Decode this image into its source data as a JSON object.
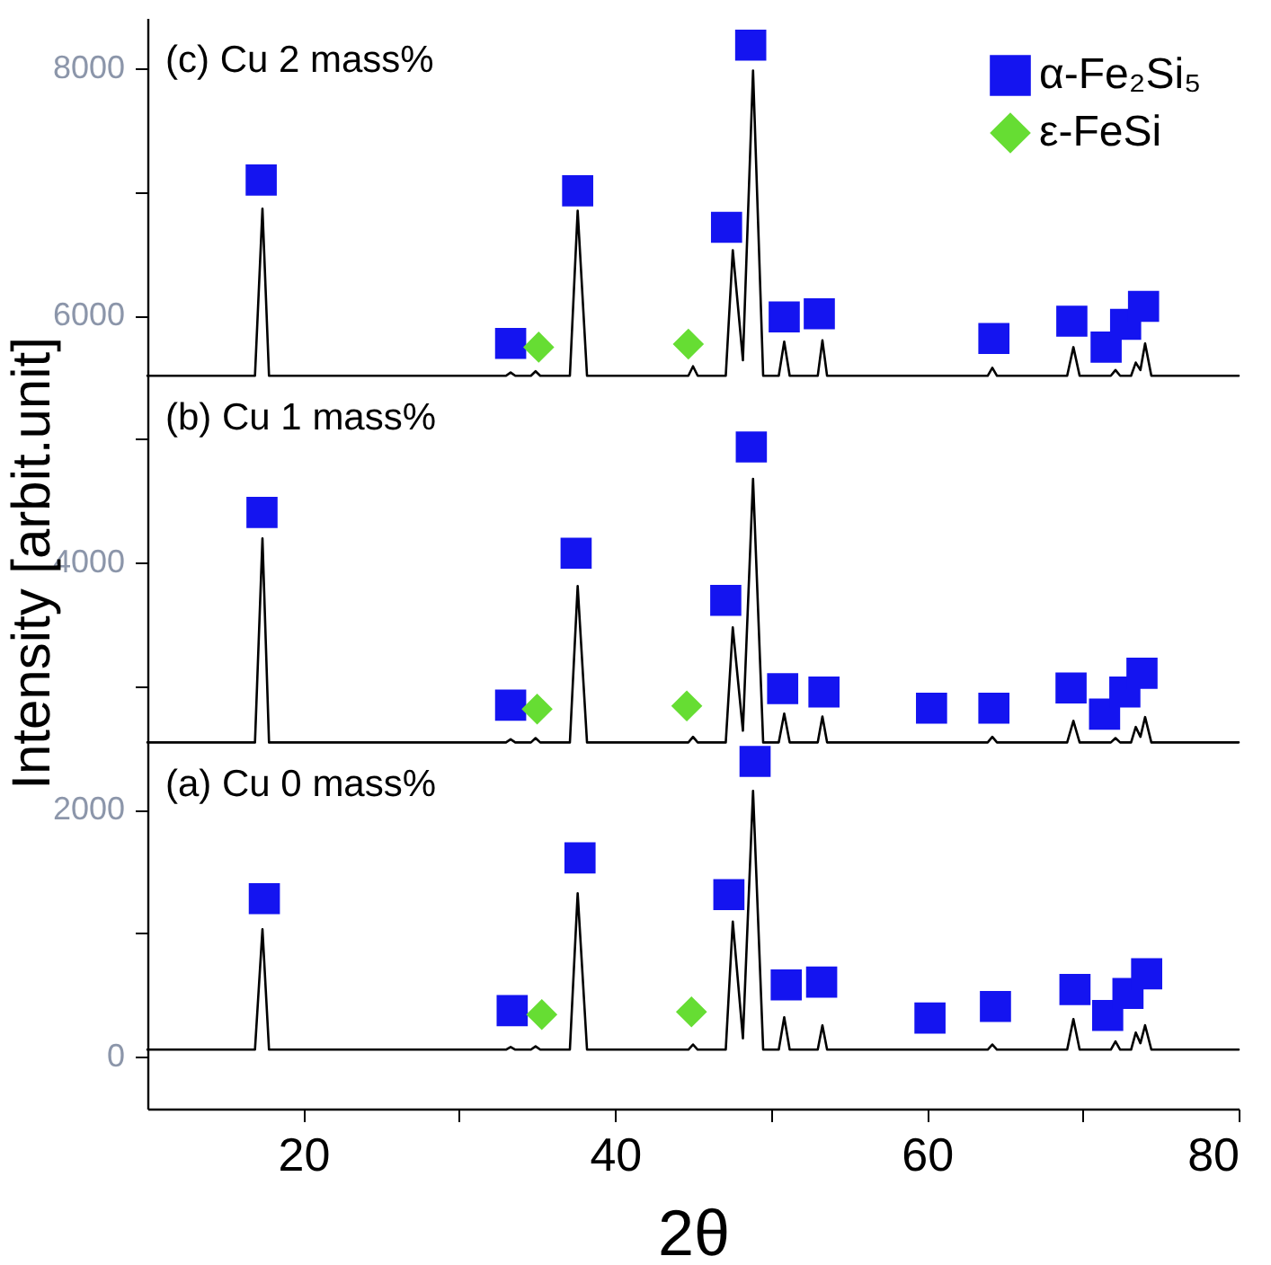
{
  "chart_data": {
    "type": "line",
    "xlabel": "2θ",
    "ylabel": "Intensity [arbit.unit]",
    "xlim": [
      10,
      80
    ],
    "xticks": [
      20,
      {
        "value": 30,
        "label": null
      },
      40,
      {
        "value": 50,
        "label": null
      },
      60,
      {
        "value": 70,
        "label": null
      },
      80
    ],
    "ylim": [
      -420,
      8410
    ],
    "yticks": [
      0,
      {
        "value": 1000,
        "label": null
      },
      2000,
      {
        "value": 3000,
        "label": null
      },
      4000,
      {
        "value": 5000,
        "label": null
      },
      6000,
      {
        "value": 7000,
        "label": null
      },
      8000
    ],
    "grid": false,
    "legend": "top right",
    "annotations": [
      "(c) Cu 2 mass%",
      "(b) Cu 1 mass%",
      "(a) Cu 0 mass%"
    ],
    "series": [
      {
        "type": "line",
        "color": "#000000",
        "x": [
          10,
          16.9,
          17.38,
          17.8,
          33.0,
          33.3,
          33.6,
          34.6,
          34.9,
          35.2,
          37.1,
          37.6,
          38.2,
          44.7,
          45.0,
          45.3,
          47.1,
          47.55,
          48.2,
          48.85,
          49.5,
          50.5,
          50.85,
          51.2,
          53.0,
          53.3,
          53.6,
          63.9,
          64.2,
          64.5,
          69.0,
          69.4,
          69.8,
          71.8,
          72.1,
          72.4,
          73.1,
          73.4,
          73.7,
          74.0,
          74.4,
          80
        ],
        "values": [
          5513,
          5513,
          6865,
          5513,
          5513,
          5540,
          5513,
          5513,
          5550,
          5513,
          5513,
          6850,
          5513,
          5513,
          5590,
          5513,
          5513,
          6530,
          5640,
          7985,
          5513,
          5513,
          5790,
          5513,
          5513,
          5800,
          5513,
          5513,
          5578,
          5513,
          5513,
          5745,
          5513,
          5513,
          5560,
          5513,
          5513,
          5620,
          5560,
          5775,
          5513,
          5513
        ]
      },
      {
        "type": "line",
        "color": "#000000",
        "x": [
          10,
          16.9,
          17.38,
          17.8,
          33.0,
          33.3,
          33.6,
          34.6,
          34.9,
          35.2,
          37.1,
          37.6,
          38.2,
          44.7,
          45.0,
          45.3,
          47.1,
          47.55,
          48.2,
          48.85,
          49.5,
          50.5,
          50.85,
          51.2,
          53.0,
          53.3,
          53.6,
          63.9,
          64.2,
          64.5,
          69.0,
          69.4,
          69.8,
          71.8,
          72.1,
          72.4,
          73.1,
          73.4,
          73.7,
          74.0,
          74.4,
          80
        ],
        "values": [
          2545,
          2545,
          4196,
          2545,
          2545,
          2570,
          2545,
          2545,
          2580,
          2545,
          2545,
          3811,
          2545,
          2545,
          2590,
          2545,
          2545,
          3476,
          2640,
          4678,
          2545,
          2545,
          2778,
          2545,
          2545,
          2755,
          2545,
          2545,
          2590,
          2545,
          2545,
          2720,
          2545,
          2545,
          2580,
          2545,
          2545,
          2670,
          2590,
          2750,
          2545,
          2545
        ]
      },
      {
        "type": "line",
        "color": "#000000",
        "x": [
          10,
          16.9,
          17.38,
          17.8,
          33.0,
          33.3,
          33.6,
          34.6,
          34.9,
          35.2,
          37.1,
          37.6,
          38.2,
          44.7,
          45.0,
          45.3,
          47.1,
          47.55,
          48.2,
          48.85,
          49.5,
          50.5,
          50.85,
          51.2,
          53.0,
          53.3,
          53.6,
          63.9,
          64.2,
          64.5,
          69.0,
          69.4,
          69.8,
          71.8,
          72.1,
          72.4,
          73.1,
          73.4,
          73.7,
          74.0,
          74.4,
          80
        ],
        "values": [
          58,
          58,
          1033,
          58,
          58,
          80,
          58,
          58,
          85,
          58,
          58,
          1324,
          58,
          58,
          100,
          58,
          58,
          1095,
          150,
          2153,
          58,
          58,
          320,
          58,
          58,
          255,
          58,
          58,
          100,
          58,
          58,
          305,
          58,
          58,
          124,
          58,
          58,
          196,
          110,
          255,
          58,
          58
        ]
      },
      {
        "type": "scatter",
        "name": "α-Fe₂Si₅",
        "color": "#1414f0",
        "marker": "square",
        "x": [
          17.3,
          33.3,
          37.6,
          47.15,
          48.7,
          50.85,
          53.1,
          64.3,
          69.3,
          71.5,
          72.75,
          73.9,
          17.35,
          33.3,
          37.5,
          47.1,
          48.74,
          50.75,
          53.4,
          60.3,
          64.3,
          69.25,
          71.4,
          72.7,
          73.8,
          17.5,
          33.4,
          37.75,
          47.3,
          48.98,
          50.98,
          53.25,
          60.2,
          64.4,
          69.5,
          71.6,
          72.9,
          74.1
        ],
        "values": [
          7098,
          5775,
          7011,
          6715,
          8190,
          5990,
          6015,
          5815,
          5955,
          5745,
          5930,
          6075,
          4407,
          2847,
          4077,
          3695,
          4937,
          2980,
          2953,
          2822,
          2822,
          2986,
          2774,
          2953,
          3105,
          1280,
          374,
          1610,
          1313,
          2391,
          582,
          605,
          314,
          407,
          545,
          335,
          513,
          672
        ]
      },
      {
        "type": "scatter",
        "name": "ε-FeSi",
        "color": "#66dd33",
        "marker": "diamond",
        "x": [
          35.1,
          44.7,
          35.0,
          44.6,
          35.3,
          44.9
        ],
        "values": [
          5745,
          5770,
          2815,
          2840,
          342,
          364
        ]
      }
    ]
  }
}
